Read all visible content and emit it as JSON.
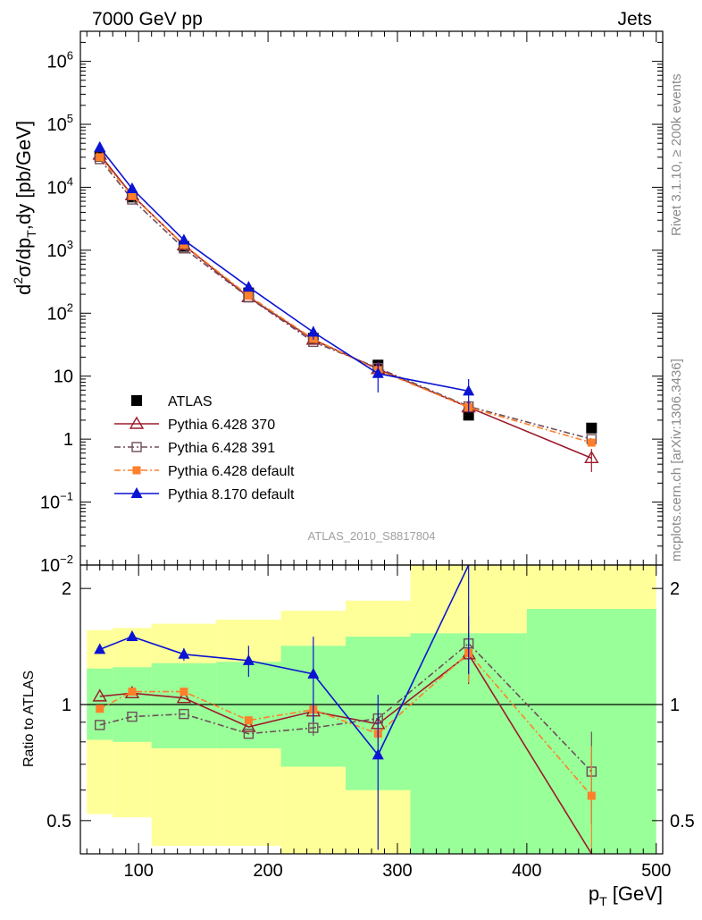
{
  "header": {
    "left": "7000 GeV pp",
    "right": "Jets"
  },
  "side_labels": {
    "rivet": "Rivet 3.1.10, ≥ 200k events",
    "mcplots": "mcplots.cern.ch [arXiv:1306.3436]"
  },
  "analysis_id": "ATLAS_2010_S8817804",
  "chart_data": [
    {
      "type": "scatter",
      "panel": "main",
      "title": "",
      "ylabel_main": "d",
      "ylabel_sup": "2",
      "ylabel_rest": "σ/dp",
      "ylabel_sub": "T",
      "ylabel_tail": ",dy [pb/GeV]",
      "yscale": "log",
      "ylim": [
        0.01,
        3000000
      ],
      "xlim": [
        55,
        505
      ],
      "y_ticks": [
        {
          "v": 1000000,
          "base": "10",
          "exp": "6"
        },
        {
          "v": 100000,
          "base": "10",
          "exp": "5"
        },
        {
          "v": 10000,
          "base": "10",
          "exp": "4"
        },
        {
          "v": 1000,
          "base": "10",
          "exp": "3"
        },
        {
          "v": 100,
          "base": "10",
          "exp": "2"
        },
        {
          "v": 10,
          "base": "10",
          "exp": ""
        },
        {
          "v": 1,
          "base": "1",
          "exp": ""
        },
        {
          "v": 0.1,
          "base": "10",
          "exp": "−1"
        },
        {
          "v": 0.01,
          "base": "10",
          "exp": "−2"
        }
      ],
      "x": [
        70,
        95,
        135,
        185,
        235,
        285,
        355,
        450
      ],
      "x_edges": [
        60,
        80,
        110,
        160,
        210,
        260,
        310,
        400,
        500
      ],
      "series": [
        {
          "name": "ATLAS",
          "color": "#000000",
          "marker": "filled-square",
          "line": "none",
          "values": [
            31000,
            7000,
            1150,
            210,
            40,
            15,
            2.4,
            1.5
          ]
        },
        {
          "name": "Pythia 6.428 370",
          "color": "#9b1b2b",
          "marker": "open-triangle",
          "line": "solid",
          "values": [
            33000,
            7500,
            1200,
            180,
            38,
            13,
            3.2,
            0.5
          ],
          "err": [
            0,
            0,
            0,
            0,
            0,
            0,
            0,
            0.2
          ]
        },
        {
          "name": "Pythia 6.428 391",
          "color": "#6e4e58",
          "marker": "open-square",
          "line": "dashdot",
          "values": [
            28000,
            6400,
            1070,
            178,
            35,
            13.5,
            3.3,
            1.0
          ]
        },
        {
          "name": "Pythia 6.428 default",
          "color": "#ff7f2a",
          "marker": "filled-square-small",
          "line": "dashdot",
          "values": [
            30000,
            7300,
            1220,
            190,
            39,
            12.5,
            3.2,
            0.88
          ]
        },
        {
          "name": "Pythia 8.170 default",
          "color": "#0a14d2",
          "marker": "filled-triangle",
          "line": "solid",
          "values": [
            43000,
            9500,
            1450,
            260,
            50,
            11,
            5.8,
            null
          ],
          "err": [
            0,
            0,
            0,
            0,
            12,
            5.5,
            3.2,
            0
          ]
        }
      ]
    },
    {
      "type": "line",
      "panel": "ratio",
      "ylabel": "Ratio to ATLAS",
      "xlabel_main": "p",
      "xlabel_sub": "T",
      "xlabel_tail": " [GeV]",
      "yscale": "log",
      "ylim": [
        0.41,
        2.3
      ],
      "xlim": [
        55,
        505
      ],
      "x_ticks": [
        100,
        200,
        300,
        400,
        500
      ],
      "y_ticks": [
        {
          "v": 0.5,
          "label": "0.5"
        },
        {
          "v": 1,
          "label": "1"
        },
        {
          "v": 2,
          "label": "2"
        }
      ],
      "x_edges": [
        60,
        80,
        110,
        160,
        210,
        260,
        310,
        400,
        500
      ],
      "band_green": [
        [
          0.81,
          1.24
        ],
        [
          0.8,
          1.25
        ],
        [
          0.77,
          1.28
        ],
        [
          0.77,
          1.29
        ],
        [
          0.69,
          1.42
        ],
        [
          0.6,
          1.5
        ],
        [
          0.41,
          1.53
        ],
        [
          0.41,
          1.77
        ]
      ],
      "band_yellow": [
        [
          0.52,
          1.56
        ],
        [
          0.51,
          1.58
        ],
        [
          0.43,
          1.62
        ],
        [
          0.43,
          1.66
        ],
        [
          0.41,
          1.75
        ],
        [
          0.41,
          1.86
        ],
        [
          0.41,
          2.3
        ],
        [
          0.41,
          2.3
        ]
      ],
      "x": [
        70,
        95,
        135,
        185,
        235,
        285,
        355,
        450
      ],
      "series": [
        {
          "name": "Pythia 6.428 370",
          "color": "#9b1b2b",
          "marker": "open-triangle",
          "line": "solid",
          "values": [
            1.05,
            1.07,
            1.04,
            0.875,
            0.96,
            0.89,
            1.35,
            0.33
          ],
          "err": [
            0,
            0,
            0,
            0,
            0.05,
            0.05,
            0.22,
            0
          ]
        },
        {
          "name": "Pythia 6.428 391",
          "color": "#6e4e58",
          "marker": "open-square",
          "line": "dashdot",
          "values": [
            0.885,
            0.93,
            0.945,
            0.84,
            0.87,
            0.92,
            1.44,
            0.67
          ],
          "err": [
            0,
            0,
            0,
            0,
            0.04,
            0.05,
            0.25,
            0.18
          ]
        },
        {
          "name": "Pythia 6.428 default",
          "color": "#ff7f2a",
          "marker": "filled-square-small",
          "line": "dashdot",
          "values": [
            0.975,
            1.08,
            1.08,
            0.91,
            0.97,
            0.84,
            1.36,
            0.58
          ],
          "err": [
            0,
            0,
            0,
            0,
            0.04,
            0.06,
            0.22,
            0.2
          ]
        },
        {
          "name": "Pythia 8.170 default",
          "color": "#0a14d2",
          "marker": "filled-triangle",
          "line": "solid",
          "values": [
            1.39,
            1.5,
            1.35,
            1.3,
            1.2,
            0.74,
            2.4,
            null
          ],
          "err": [
            0,
            0,
            0.05,
            0.12,
            0.3,
            0.32,
            1.2,
            0
          ]
        }
      ]
    }
  ]
}
